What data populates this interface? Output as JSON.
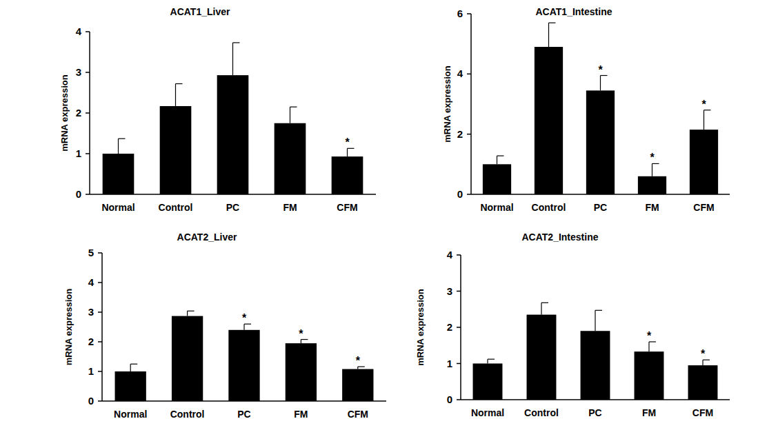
{
  "chart_data": [
    {
      "type": "bar",
      "title": "ACAT1_Liver",
      "y_label": "mRNA expression",
      "color": "#000000",
      "categories": [
        "Normal",
        "Control",
        "PC",
        "FM",
        "CFM"
      ],
      "values": [
        1.0,
        2.17,
        2.93,
        1.75,
        0.93
      ],
      "errors": [
        0.37,
        0.55,
        0.8,
        0.4,
        0.2
      ],
      "significance": [
        null,
        null,
        null,
        null,
        "*"
      ],
      "ylim": [
        0,
        4
      ],
      "yticks": [
        0,
        1,
        2,
        3,
        4
      ]
    },
    {
      "type": "bar",
      "title": "ACAT1_Intestine",
      "y_label": "mRNA expression",
      "color": "#000000",
      "categories": [
        "Normal",
        "Control",
        "PC",
        "FM",
        "CFM"
      ],
      "values": [
        1.0,
        4.9,
        3.45,
        0.6,
        2.15
      ],
      "errors": [
        0.28,
        0.8,
        0.5,
        0.42,
        0.65
      ],
      "significance": [
        null,
        null,
        "*",
        "*",
        "*"
      ],
      "ylim": [
        0,
        6
      ],
      "yticks": [
        0,
        2,
        4,
        6
      ]
    },
    {
      "type": "bar",
      "title": "ACAT2_Liver",
      "y_label": "mRNA expression",
      "color": "#000000",
      "categories": [
        "Normal",
        "Control",
        "PC",
        "FM",
        "CFM"
      ],
      "values": [
        1.0,
        2.87,
        2.4,
        1.95,
        1.08
      ],
      "errors": [
        0.25,
        0.17,
        0.2,
        0.13,
        0.08
      ],
      "significance": [
        null,
        null,
        "*",
        "*",
        "*"
      ],
      "ylim": [
        0,
        5
      ],
      "yticks": [
        0,
        1,
        2,
        3,
        4,
        5
      ]
    },
    {
      "type": "bar",
      "title": "ACAT2_Intestine",
      "y_label": "mRNA expression",
      "color": "#000000",
      "categories": [
        "Normal",
        "Control",
        "PC",
        "FM",
        "CFM"
      ],
      "values": [
        1.0,
        2.35,
        1.9,
        1.33,
        0.95
      ],
      "errors": [
        0.12,
        0.33,
        0.57,
        0.27,
        0.15
      ],
      "significance": [
        null,
        null,
        null,
        "*",
        "*"
      ],
      "ylim": [
        0,
        4
      ],
      "yticks": [
        0,
        1,
        2,
        3,
        4
      ]
    }
  ]
}
